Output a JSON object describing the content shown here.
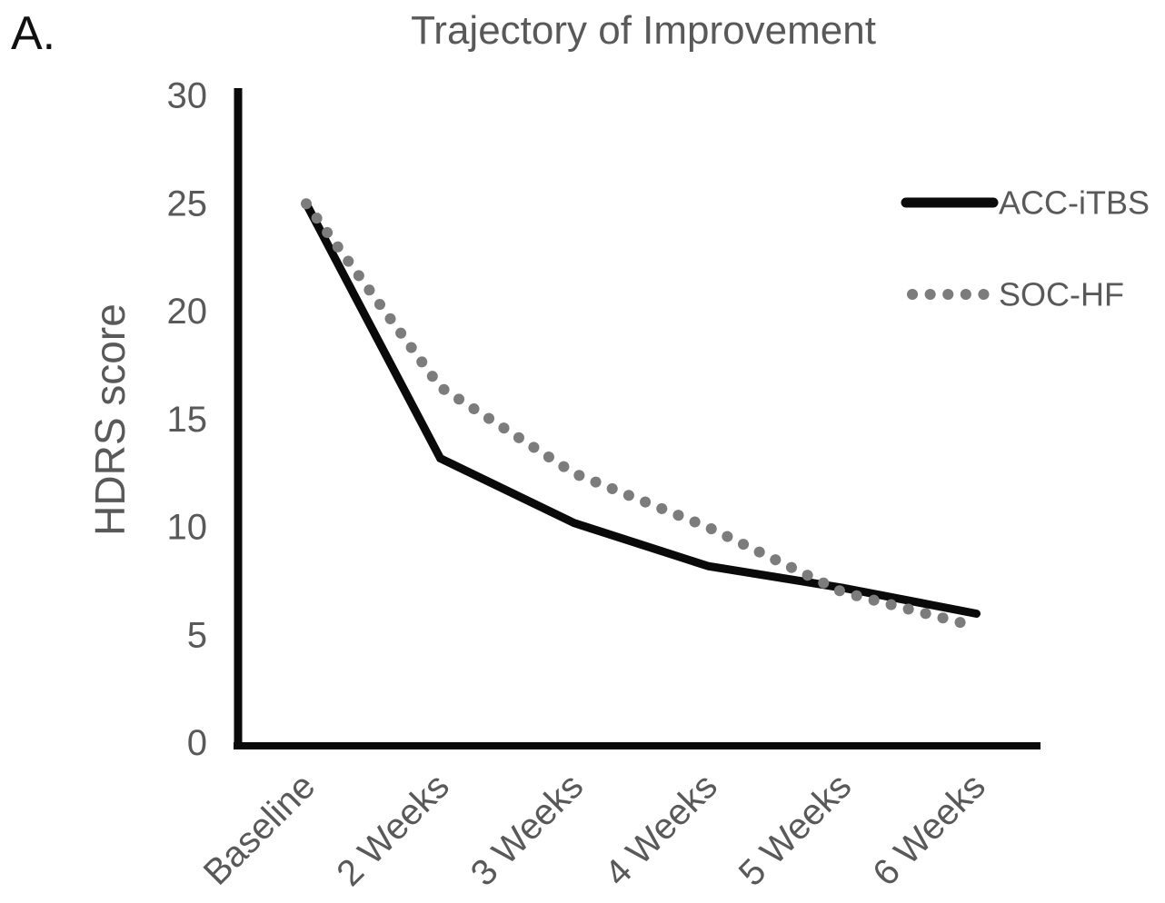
{
  "figure": {
    "panel_label": "A.",
    "title": "Trajectory of Improvement"
  },
  "chart_data": {
    "type": "line",
    "title": "Trajectory of Improvement",
    "xlabel": "",
    "ylabel": "HDRS score",
    "categories": [
      "Baseline",
      "2 Weeks",
      "3 Weeks",
      "4 Weeks",
      "5 Weeks",
      "6 Weeks"
    ],
    "series": [
      {
        "name": "ACC-iTBS",
        "line_style": "solid",
        "color": "#0a0a0a",
        "values": [
          25,
          13.2,
          10.2,
          8.2,
          7.2,
          6
        ]
      },
      {
        "name": "SOC-HF",
        "line_style": "dotted",
        "color": "#7c7c7c",
        "values": [
          25,
          16.5,
          12.5,
          10,
          7,
          5.4
        ]
      }
    ],
    "ylim": [
      0,
      30
    ],
    "yticks": [
      0,
      5,
      10,
      15,
      20,
      25,
      30
    ],
    "grid": false,
    "legend_position": "right",
    "axis_color": "#0a0a0a",
    "text_color": "#595959"
  }
}
